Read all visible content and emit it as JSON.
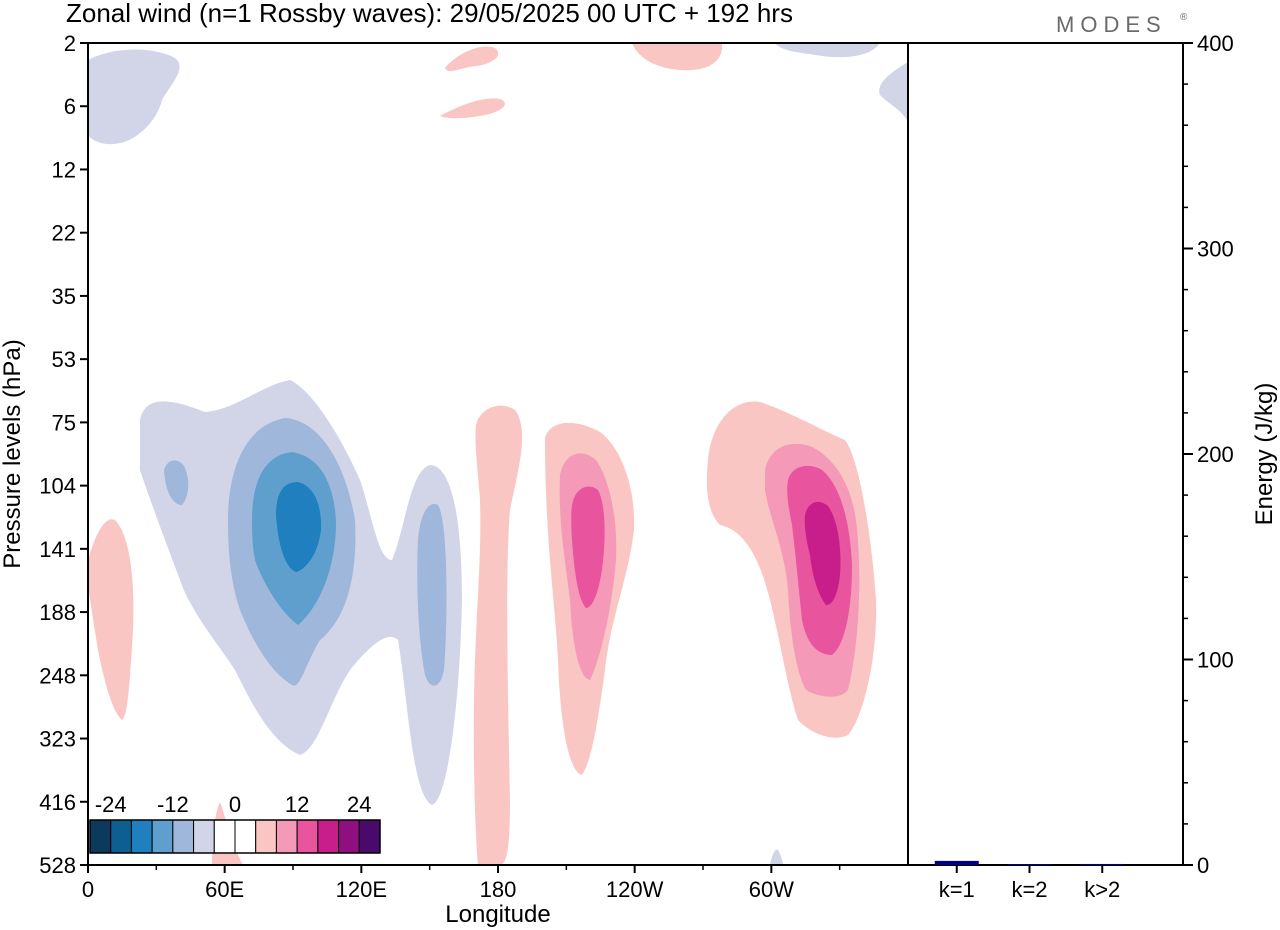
{
  "title": "Zonal wind (n=1 Rossby waves):  29/05/2025  00 UTC  + 192 hrs",
  "brand": "MODES",
  "brand_mark": "®",
  "chart_data": [
    {
      "type": "heatmap",
      "xlabel": "Longitude",
      "ylabel": "Pressure levels (hPa)",
      "x_ticks": [
        "0",
        "60E",
        "120E",
        "180",
        "120W",
        "60W"
      ],
      "x_tick_degrees": [
        0,
        60,
        120,
        180,
        240,
        300
      ],
      "x_range": [
        0,
        360
      ],
      "y_ticks": [
        "2",
        "6",
        "12",
        "22",
        "35",
        "53",
        "75",
        "104",
        "141",
        "188",
        "248",
        "323",
        "416",
        "528"
      ],
      "colorbar": {
        "labels": [
          "-24",
          "-12",
          "0",
          "12",
          "24"
        ],
        "label_bin_index": [
          1,
          4,
          7,
          10,
          13
        ],
        "colors": [
          "#0b3a5c",
          "#0d5f92",
          "#1f7fbf",
          "#5f9fce",
          "#9fb7da",
          "#d2d4e8",
          "#ffffff",
          "#ffffff",
          "#f9c6c4",
          "#f49ab8",
          "#e9549e",
          "#c81e8c",
          "#8f0f80",
          "#4a0a6b"
        ]
      },
      "levels_colors": {
        "neg1": "#d2d4e8",
        "neg2": "#9fb7da",
        "neg3": "#5f9fce",
        "neg4": "#1f7fbf",
        "pos1": "#f9c6c4",
        "pos2": "#f49ab8",
        "pos3": "#e9549e",
        "pos4": "#c81e8c"
      },
      "features": [
        {
          "sign": "negative",
          "lon_center": 90,
          "level_center": "141",
          "peak": -16
        },
        {
          "sign": "negative",
          "lon_center": 150,
          "level_center": "188",
          "peak": -8
        },
        {
          "sign": "positive",
          "lon_center": 183,
          "level_center": "248",
          "peak": 4
        },
        {
          "sign": "positive",
          "lon_center": 218,
          "level_center": "141",
          "peak": 12
        },
        {
          "sign": "positive",
          "lon_center": 320,
          "level_center": "141",
          "peak": 16
        },
        {
          "sign": "positive",
          "lon_center": 12,
          "level_center": "188",
          "peak": 4
        }
      ]
    },
    {
      "type": "bar",
      "categories": [
        "k=1",
        "k=2",
        "k>2"
      ],
      "values": [
        2,
        0.3,
        0.5
      ],
      "ylabel": "Energy (J/kg)",
      "ylim": [
        0,
        400
      ],
      "y_ticks": [
        "0",
        "100",
        "200",
        "300",
        "400"
      ],
      "bar_color": "#00008b"
    }
  ]
}
